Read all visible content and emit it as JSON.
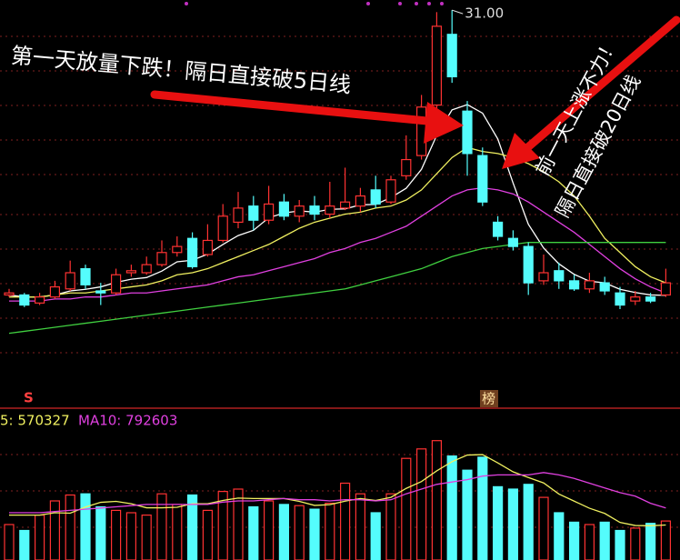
{
  "chart_data": [
    {
      "type": "candlestick",
      "ylim": [
        11.7,
        31.5
      ],
      "up_color": "#ff3232",
      "down_color": "#54fcfc",
      "open": [
        16.9,
        16.9,
        16.5,
        16.8,
        17.2,
        18.2,
        17.1,
        17.0,
        18.0,
        18.0,
        18.4,
        19.0,
        19.7,
        18.9,
        19.6,
        20.5,
        21.3,
        20.6,
        21.5,
        20.8,
        21.3,
        20.9,
        21.2,
        21.3,
        22.1,
        21.5,
        22.8,
        23.8,
        26.3,
        29.8,
        26.0,
        23.8,
        20.5,
        19.7,
        19.3,
        17.6,
        18.1,
        17.6,
        17.2,
        17.5,
        17.0,
        16.6,
        16.8,
        16.9
      ],
      "high": [
        17.2,
        17.0,
        17.0,
        17.6,
        18.6,
        18.4,
        17.5,
        18.2,
        18.4,
        18.8,
        19.6,
        19.8,
        20.0,
        20.4,
        21.4,
        22.0,
        21.8,
        22.3,
        21.9,
        21.6,
        21.8,
        22.5,
        23.2,
        22.2,
        22.8,
        22.8,
        24.8,
        26.8,
        30.9,
        31.0,
        26.5,
        24.2,
        20.8,
        20.1,
        19.5,
        18.9,
        18.5,
        17.9,
        18.0,
        17.8,
        17.3,
        17.1,
        17.0,
        18.2
      ],
      "low": [
        16.8,
        16.3,
        16.4,
        16.7,
        17.1,
        17.2,
        16.4,
        16.9,
        17.8,
        17.9,
        18.3,
        18.8,
        18.2,
        18.8,
        19.5,
        20.2,
        20.1,
        20.4,
        20.6,
        20.5,
        20.6,
        20.7,
        21.1,
        21.0,
        21.2,
        21.4,
        22.6,
        23.6,
        26.0,
        27.4,
        22.8,
        21.3,
        19.6,
        19.1,
        16.9,
        17.4,
        17.2,
        17.1,
        17.0,
        16.9,
        16.2,
        16.4,
        16.5,
        16.8
      ],
      "close": [
        17.0,
        16.4,
        16.8,
        17.3,
        18.0,
        17.4,
        17.0,
        17.9,
        18.1,
        18.4,
        19.0,
        19.3,
        18.3,
        19.6,
        20.8,
        21.2,
        20.6,
        21.4,
        20.8,
        21.3,
        20.9,
        21.3,
        21.5,
        21.8,
        21.4,
        22.6,
        23.6,
        26.2,
        30.2,
        27.7,
        23.9,
        21.5,
        19.8,
        19.3,
        17.5,
        18.0,
        17.6,
        17.2,
        17.6,
        17.1,
        16.4,
        16.8,
        16.6,
        17.5
      ],
      "lines": [
        {
          "color": "#ffffff",
          "values": [
            16.9,
            16.8,
            16.8,
            16.9,
            17.1,
            17.18,
            17.3,
            17.52,
            17.68,
            17.76,
            18.08,
            18.54,
            18.62,
            18.92,
            19.4,
            19.84,
            20.1,
            20.72,
            20.96,
            21.06,
            21.0,
            21.14,
            21.16,
            21.36,
            21.38,
            21.72,
            22.18,
            23.12,
            24.8,
            26.06,
            26.32,
            25.9,
            24.62,
            22.44,
            20.4,
            19.22,
            18.44,
            17.92,
            17.58,
            17.5,
            17.18,
            17.02,
            16.9,
            16.88
          ]
        },
        {
          "color": "#f0f060",
          "values": [
            16.8,
            16.8,
            16.8,
            16.9,
            17.0,
            17.0,
            17.1,
            17.2,
            17.3,
            17.4,
            17.6,
            17.9,
            18.0,
            18.2,
            18.5,
            18.8,
            19.1,
            19.4,
            19.8,
            20.2,
            20.5,
            20.7,
            20.9,
            21.0,
            21.2,
            21.3,
            21.6,
            22.1,
            22.9,
            23.7,
            24.2,
            24.0,
            23.9,
            23.7,
            23.4,
            23.0,
            22.5,
            21.8,
            20.8,
            19.7,
            19.0,
            18.3,
            17.8,
            17.5
          ]
        },
        {
          "color": "#e040e0",
          "values": [
            16.6,
            16.6,
            16.6,
            16.7,
            16.7,
            16.8,
            16.8,
            16.9,
            17.0,
            17.0,
            17.1,
            17.2,
            17.3,
            17.4,
            17.6,
            17.8,
            17.9,
            18.1,
            18.3,
            18.5,
            18.7,
            19.0,
            19.2,
            19.5,
            19.7,
            20.0,
            20.3,
            20.8,
            21.3,
            21.8,
            22.1,
            22.2,
            22.1,
            21.9,
            21.5,
            21.0,
            20.5,
            20.0,
            19.4,
            18.8,
            18.2,
            17.7,
            17.3,
            17.0
          ]
        },
        {
          "color": "#40d040",
          "values": [
            15.0,
            15.1,
            15.2,
            15.3,
            15.4,
            15.5,
            15.6,
            15.7,
            15.8,
            15.9,
            16.0,
            16.1,
            16.2,
            16.3,
            16.4,
            16.5,
            16.6,
            16.7,
            16.8,
            16.9,
            17.0,
            17.1,
            17.2,
            17.4,
            17.6,
            17.8,
            18.0,
            18.2,
            18.5,
            18.8,
            19.0,
            19.2,
            19.3,
            19.4,
            19.5,
            19.5,
            19.5,
            19.5,
            19.5,
            19.5,
            19.5,
            19.5,
            19.5,
            19.5
          ]
        }
      ],
      "max_label": {
        "value": 31,
        "label": "31.00"
      },
      "annotations": [
        "第一天放量下跌！隔日直接破5日线",
        "前一天上涨不力！",
        "隔日直接破20日线"
      ],
      "markers": [
        "S",
        "榜"
      ]
    },
    {
      "type": "bar",
      "ylim": [
        0,
        1200000
      ],
      "values": [
        300000,
        250000,
        380000,
        500000,
        550000,
        560000,
        450000,
        420000,
        400000,
        380000,
        560000,
        470000,
        550000,
        420000,
        580000,
        600000,
        450000,
        500000,
        470000,
        460000,
        430000,
        480000,
        650000,
        560000,
        400000,
        560000,
        860000,
        940000,
        1010000,
        880000,
        760000,
        870000,
        620000,
        600000,
        640000,
        530000,
        400000,
        320000,
        300000,
        320000,
        250000,
        270000,
        310000,
        330000
      ],
      "series": [
        {
          "name": "5: 570327",
          "value": 570327,
          "color": "#f0f060",
          "values": [
            380000,
            380000,
            380000,
            400000,
            396000,
            448000,
            488000,
            496000,
            476000,
            442000,
            442000,
            446000,
            476000,
            476000,
            504000,
            524000,
            520000,
            520000,
            520000,
            496000,
            462000,
            468000,
            498000,
            520000,
            504000,
            530000,
            606000,
            664000,
            754000,
            832000,
            888000,
            892000,
            822000,
            746000,
            698000,
            652000,
            558000,
            498000,
            438000,
            394000,
            318000,
            292000,
            290000,
            296000
          ]
        },
        {
          "name": "MA10: 792603",
          "value": 792603,
          "color": "#e040e0",
          "values": [
            400000,
            400000,
            400000,
            410000,
            420000,
            430000,
            440000,
            450000,
            460000,
            470000,
            470000,
            470000,
            470000,
            470000,
            490000,
            500000,
            500000,
            510000,
            520000,
            510000,
            510000,
            500000,
            510000,
            510000,
            500000,
            510000,
            560000,
            600000,
            640000,
            660000,
            680000,
            710000,
            720000,
            720000,
            720000,
            740000,
            720000,
            690000,
            650000,
            610000,
            570000,
            540000,
            480000,
            440000
          ]
        }
      ]
    }
  ]
}
